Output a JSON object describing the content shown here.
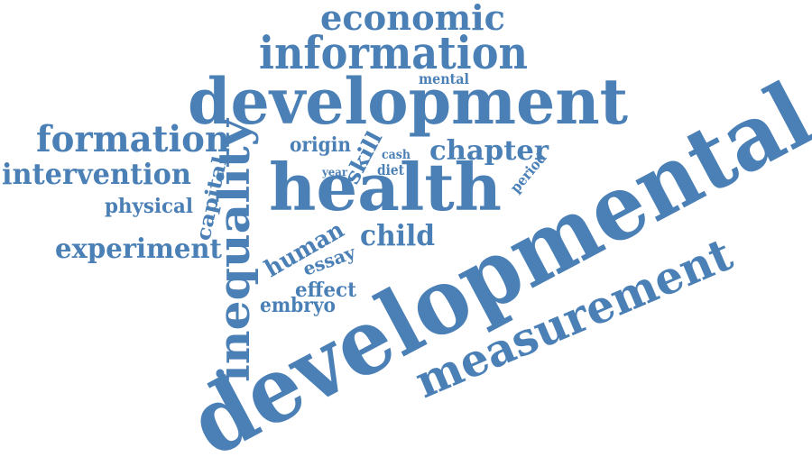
{
  "color": "#4b80b6",
  "words": {
    "developmental": "developmental",
    "health": "health",
    "development": "development",
    "inequality": "inequality",
    "measurement": "measurement",
    "information": "information",
    "economic": "economic",
    "formation": "formation",
    "intervention": "intervention",
    "experiment": "experiment",
    "physical": "physical",
    "capital": "capital",
    "chapter": "chapter",
    "child": "child",
    "human": "human",
    "essay": "essay",
    "effect": "effect",
    "embryo": "embryo",
    "origin": "origin",
    "skill": "skill",
    "mental": "mental",
    "cash": "cash",
    "diet": "diet",
    "year": "year",
    "period": "period"
  }
}
